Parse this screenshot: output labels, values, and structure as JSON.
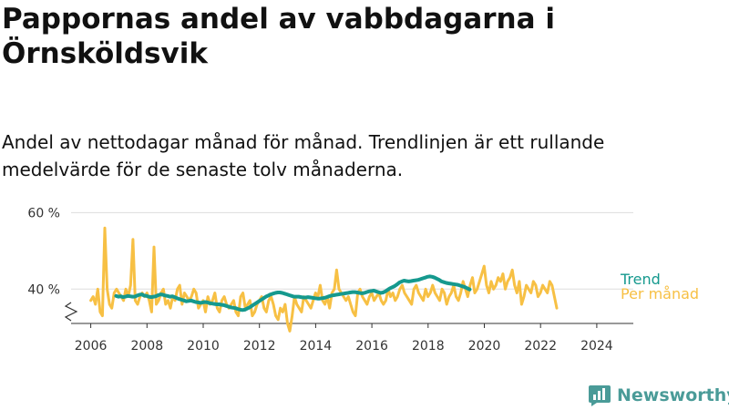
{
  "title": "Pappornas andel av vabbdagarna i Örnsköldsvik",
  "subtitle": "Andel av nettodagar månad för månad. Trendlinjen är ett rullande medelvärde för de senaste tolv månaderna.",
  "brand": "Newsworthy",
  "colors": {
    "trend": "#15998e",
    "monthly": "#f7c044",
    "grid": "#dddddd",
    "brand": "#4a9b98"
  },
  "chart_data": {
    "type": "line",
    "y_axis": {
      "ticks": [
        40,
        60
      ],
      "tick_labels": [
        "40 %",
        "60 %"
      ],
      "range": [
        31,
        62
      ],
      "broken_axis": true
    },
    "x_axis": {
      "ticks": [
        2006,
        2008,
        2010,
        2012,
        2014,
        2016,
        2018,
        2020,
        2022,
        2024
      ],
      "tick_labels": [
        "2006",
        "2008",
        "2010",
        "2012",
        "2014",
        "2016",
        "2018",
        "2020",
        "2022",
        "2024"
      ],
      "range": [
        2005.3,
        2025.3
      ]
    },
    "grid": "horizontal",
    "series": [
      {
        "name": "Per månad",
        "color": "#f7c044",
        "start": 2006.0,
        "step": 0.0833,
        "values": [
          37,
          38,
          36,
          40,
          34,
          33,
          56,
          40,
          36,
          35,
          39,
          40,
          39,
          38,
          37,
          40,
          38,
          41,
          53,
          37,
          36,
          38,
          39,
          38,
          39,
          37,
          34,
          51,
          36,
          37,
          39,
          40,
          36,
          37,
          35,
          38,
          37,
          40,
          41,
          36,
          39,
          38,
          37,
          38,
          40,
          39,
          35,
          36,
          37,
          34,
          38,
          36,
          37,
          39,
          35,
          34,
          37,
          38,
          36,
          35,
          36,
          37,
          34,
          33,
          38,
          39,
          35,
          36,
          37,
          33,
          34,
          36,
          37,
          38,
          35,
          34,
          37,
          38,
          36,
          33,
          32,
          35,
          34,
          36,
          31,
          29,
          33,
          38,
          36,
          35,
          34,
          38,
          37,
          36,
          35,
          37,
          39,
          38,
          41,
          37,
          36,
          38,
          35,
          39,
          40,
          45,
          40,
          39,
          38,
          37,
          38,
          36,
          34,
          33,
          39,
          40,
          38,
          37,
          36,
          38,
          39,
          37,
          38,
          39,
          37,
          36,
          37,
          40,
          38,
          39,
          37,
          38,
          40,
          41,
          39,
          38,
          37,
          36,
          40,
          41,
          39,
          38,
          37,
          40,
          38,
          39,
          41,
          39,
          38,
          37,
          40,
          39,
          36,
          38,
          39,
          41,
          38,
          37,
          39,
          42,
          40,
          38,
          41,
          43,
          39,
          40,
          42,
          44,
          46,
          41,
          39,
          42,
          40,
          41,
          43,
          42,
          44,
          40,
          42,
          43,
          45,
          41,
          39,
          42,
          36,
          38,
          41,
          40,
          39,
          42,
          41,
          38,
          39,
          41,
          40,
          39,
          42,
          41,
          38,
          35
        ]
      },
      {
        "name": "Trend",
        "color": "#15998e",
        "start": 2006.9,
        "step": 0.0833,
        "values": [
          38.2,
          38.0,
          38.1,
          37.9,
          38.0,
          38.2,
          38.1,
          38.0,
          38.0,
          38.3,
          38.5,
          38.6,
          38.3,
          38.2,
          38.0,
          37.9,
          38.0,
          38.1,
          38.4,
          38.6,
          38.5,
          38.3,
          38.2,
          38.0,
          38.1,
          37.9,
          37.6,
          37.4,
          37.2,
          37.0,
          36.8,
          36.9,
          37.0,
          36.8,
          36.6,
          36.5,
          36.4,
          36.5,
          36.6,
          36.5,
          36.3,
          36.2,
          36.1,
          36.0,
          36.0,
          35.9,
          35.8,
          35.6,
          35.4,
          35.2,
          35.1,
          35.0,
          34.8,
          34.6,
          34.5,
          34.6,
          34.9,
          35.2,
          35.6,
          36.0,
          36.4,
          36.8,
          37.2,
          37.6,
          38.0,
          38.3,
          38.6,
          38.8,
          39.0,
          39.1,
          39.1,
          39.0,
          38.8,
          38.6,
          38.4,
          38.2,
          38.0,
          38.0,
          38.0,
          37.9,
          37.8,
          37.8,
          37.9,
          37.8,
          37.7,
          37.6,
          37.5,
          37.5,
          37.6,
          37.7,
          37.9,
          38.1,
          38.3,
          38.4,
          38.5,
          38.6,
          38.7,
          38.8,
          38.9,
          39.0,
          39.1,
          39.2,
          39.2,
          39.1,
          39.0,
          38.9,
          39.0,
          39.2,
          39.4,
          39.5,
          39.6,
          39.4,
          39.2,
          39.0,
          39.1,
          39.4,
          39.8,
          40.2,
          40.5,
          40.8,
          41.2,
          41.7,
          42.0,
          42.2,
          42.1,
          42.0,
          42.1,
          42.2,
          42.3,
          42.4,
          42.6,
          42.8,
          43.0,
          43.2,
          43.3,
          43.2,
          43.0,
          42.7,
          42.4,
          42.0,
          41.8,
          41.6,
          41.5,
          41.4,
          41.3,
          41.2,
          41.1,
          40.9,
          40.7,
          40.5,
          40.2,
          39.9
        ]
      }
    ]
  }
}
